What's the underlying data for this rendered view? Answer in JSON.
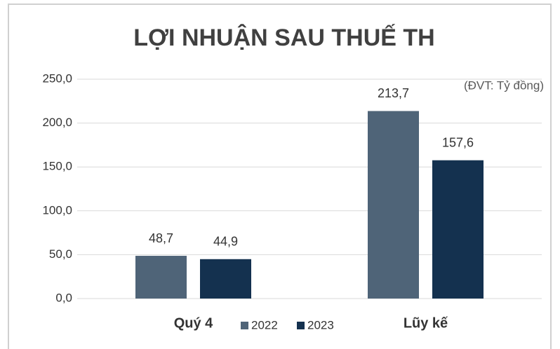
{
  "chart_data": {
    "type": "bar",
    "title": "LỢI NHUẬN SAU THUẾ TH",
    "annotation": "(ĐVT: Tỷ đồng)",
    "categories": [
      "Quý 4",
      "Lũy kế"
    ],
    "series": [
      {
        "name": "2022",
        "color": "#4f6478",
        "values": [
          48.7,
          213.7
        ],
        "value_labels": [
          "48,7",
          "213,7"
        ]
      },
      {
        "name": "2023",
        "color": "#14314f",
        "values": [
          44.9,
          157.6
        ],
        "value_labels": [
          "44,9",
          "157,6"
        ]
      }
    ],
    "ylim": [
      0,
      250
    ],
    "yticks": [
      {
        "value": 0,
        "label": "0,0"
      },
      {
        "value": 50,
        "label": "50,0"
      },
      {
        "value": 100,
        "label": "100,0"
      },
      {
        "value": 150,
        "label": "150,0"
      },
      {
        "value": 200,
        "label": "200,0"
      },
      {
        "value": 250,
        "label": "250,0"
      }
    ],
    "grid": true,
    "legend": "bottom"
  }
}
